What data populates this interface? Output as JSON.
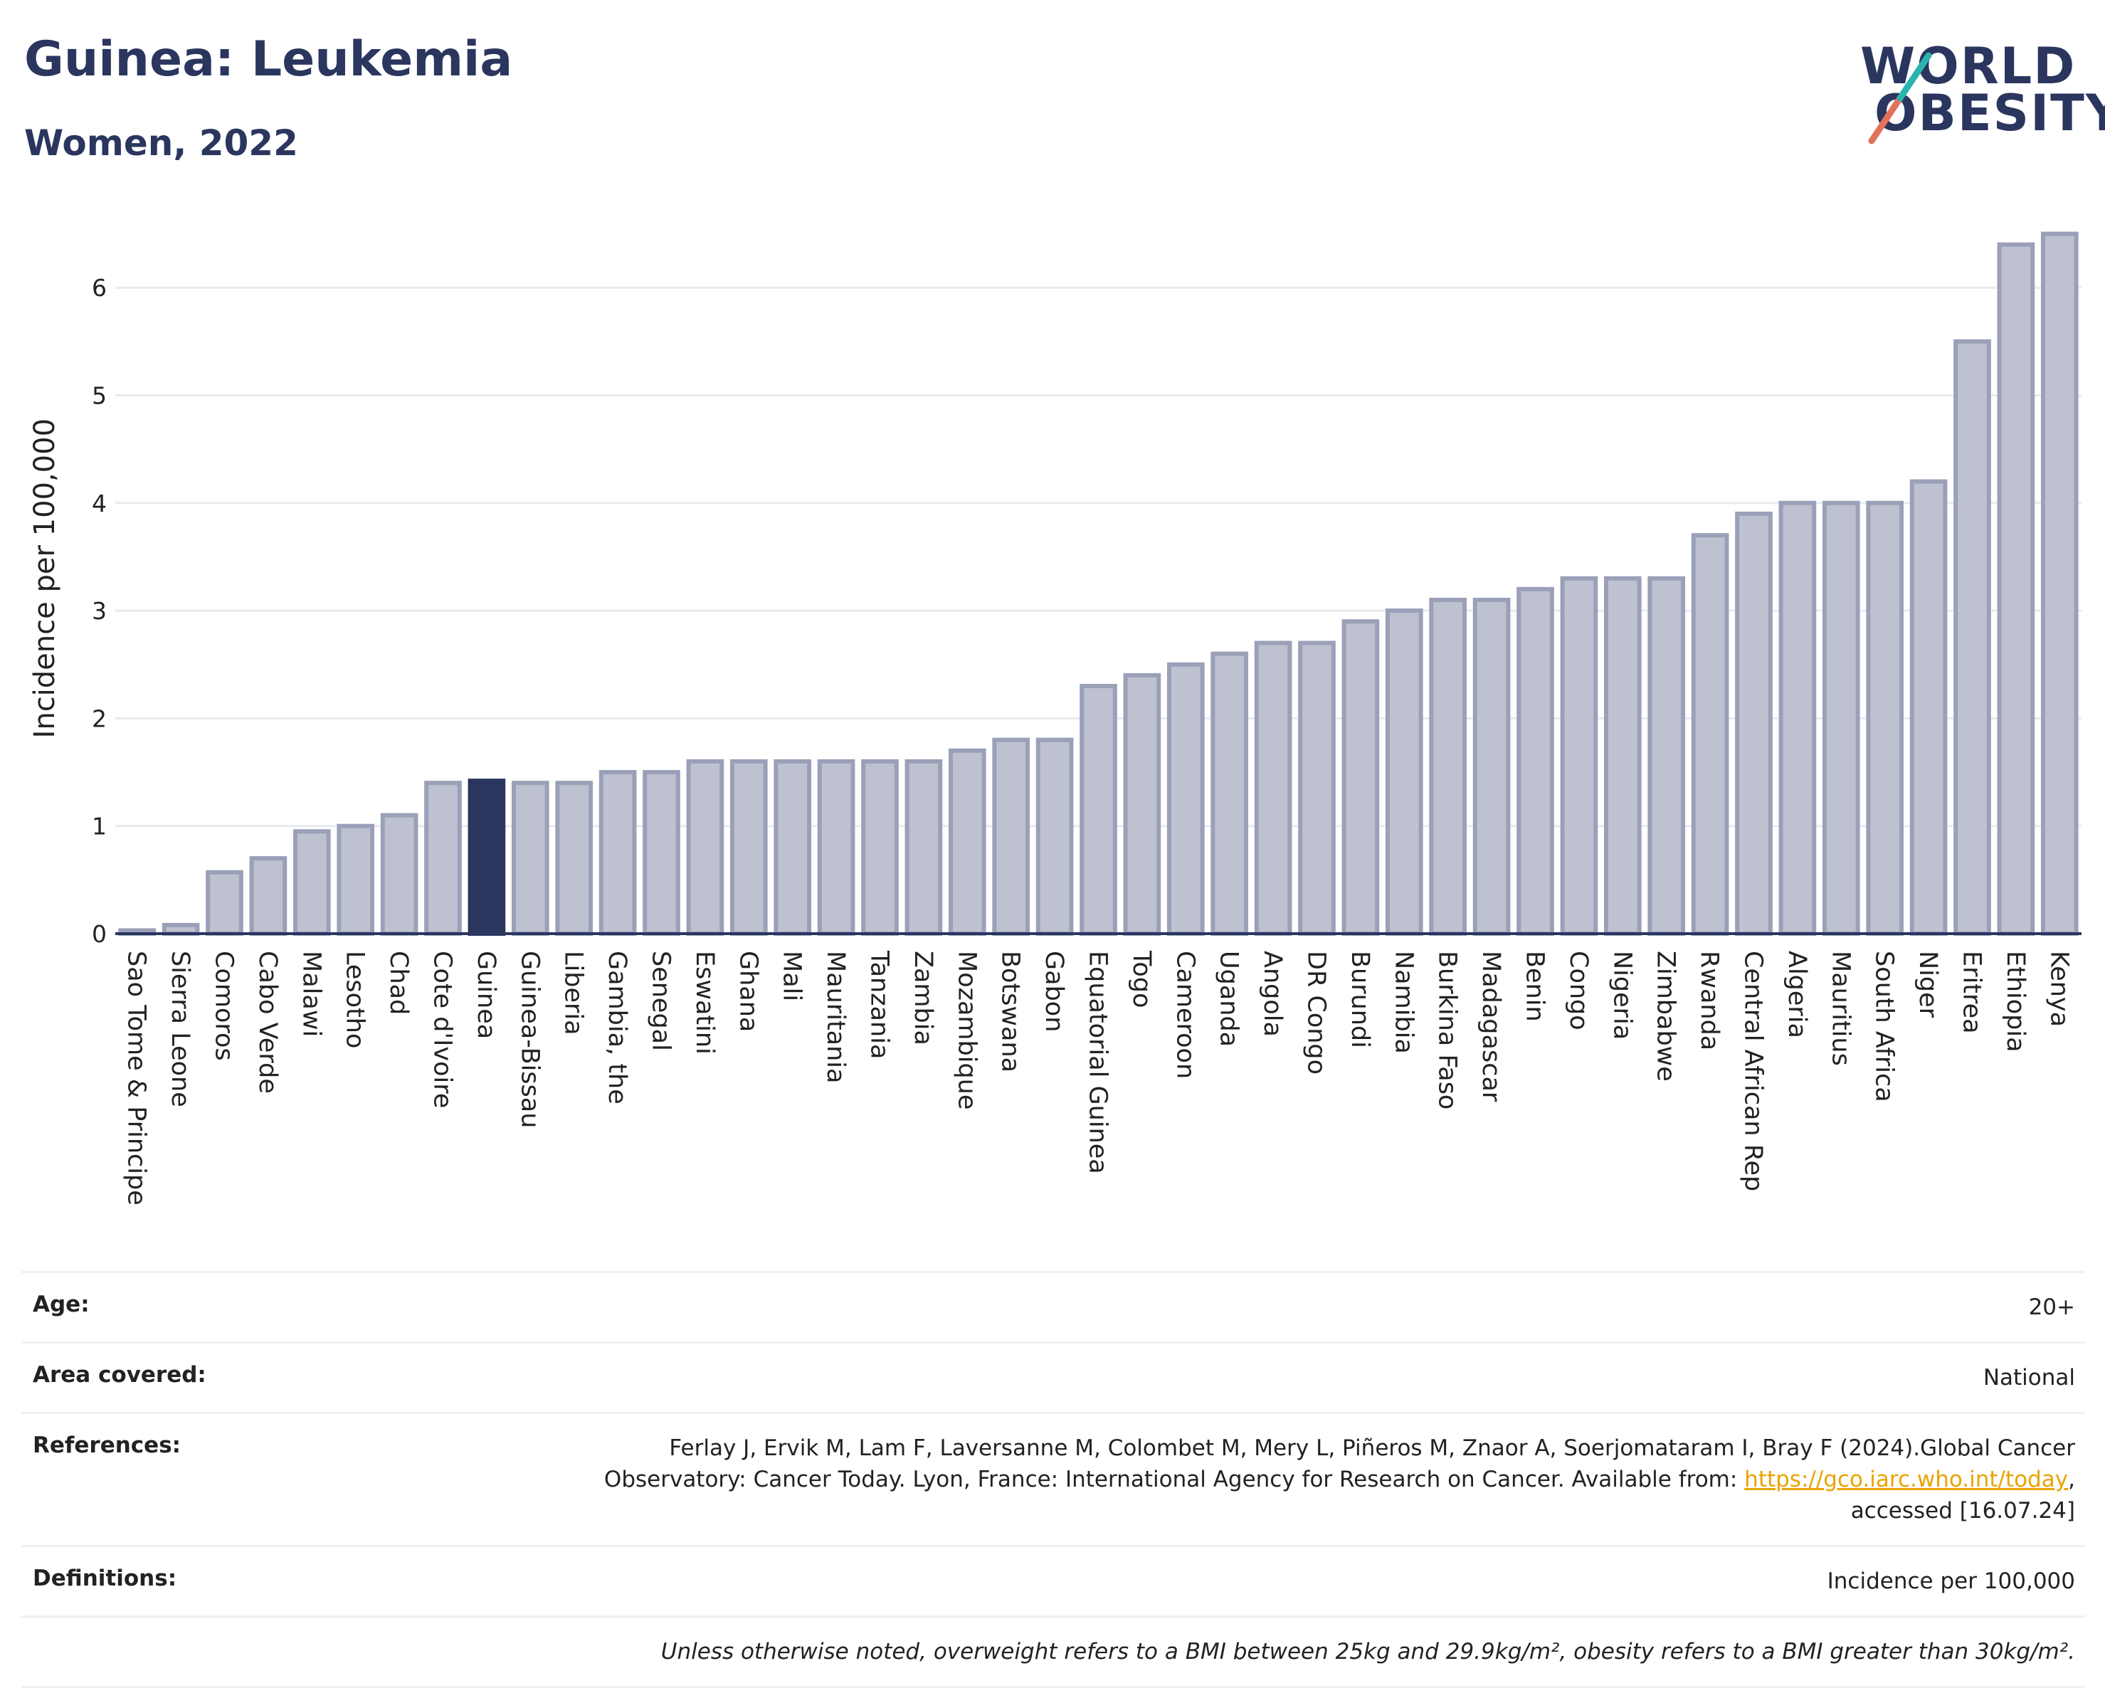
{
  "header": {
    "title": "Guinea: Leukemia",
    "subtitle": "Women, 2022"
  },
  "logo": {
    "line1": "WORLD",
    "line2": "OBESITY"
  },
  "colors": {
    "highlight": "#2b365f",
    "bar_fill": "#bdc1d0",
    "bar_stroke": "#9aa0b8",
    "grid": "#e8eaf0"
  },
  "chart_data": {
    "type": "bar",
    "ylabel": "Incidence per 100,000",
    "xlabel": "",
    "ylim": [
      0,
      6.6
    ],
    "yticks": [
      0,
      1,
      2,
      3,
      4,
      5,
      6
    ],
    "grid": true,
    "highlight": "Guinea",
    "categories": [
      "Sao Tome & Principe",
      "Sierra Leone",
      "Comoros",
      "Cabo Verde",
      "Malawi",
      "Lesotho",
      "Chad",
      "Cote d'Ivoire",
      "Guinea",
      "Guinea-Bissau",
      "Liberia",
      "Gambia, the",
      "Senegal",
      "Eswatini",
      "Ghana",
      "Mali",
      "Mauritania",
      "Tanzania",
      "Zambia",
      "Mozambique",
      "Botswana",
      "Gabon",
      "Equatorial Guinea",
      "Togo",
      "Cameroon",
      "Uganda",
      "Angola",
      "DR Congo",
      "Burundi",
      "Namibia",
      "Burkina Faso",
      "Madagascar",
      "Benin",
      "Congo",
      "Nigeria",
      "Zimbabwe",
      "Rwanda",
      "Central African Rep",
      "Algeria",
      "Mauritius",
      "South Africa",
      "Niger",
      "Eritrea",
      "Ethiopia",
      "Kenya"
    ],
    "values": [
      0.03,
      0.08,
      0.57,
      0.7,
      0.95,
      1.0,
      1.1,
      1.4,
      1.42,
      1.4,
      1.4,
      1.5,
      1.5,
      1.6,
      1.6,
      1.6,
      1.6,
      1.6,
      1.6,
      1.7,
      1.8,
      1.8,
      2.3,
      2.4,
      2.5,
      2.6,
      2.7,
      2.7,
      2.9,
      3.0,
      3.1,
      3.1,
      3.2,
      3.3,
      3.3,
      3.3,
      3.7,
      3.9,
      4.0,
      4.0,
      4.0,
      4.2,
      5.5,
      6.4,
      6.5
    ]
  },
  "info": {
    "age_label": "Age:",
    "age_value": "20+",
    "area_label": "Area covered:",
    "area_value": "National",
    "references_label": "References:",
    "references_line1": "Ferlay J, Ervik M, Lam F, Laversanne M, Colombet M, Mery L, Piñeros M, Znaor A, Soerjomataram I, Bray F (2024).Global Cancer",
    "references_line2_pre": "Observatory: Cancer Today. Lyon, France: International Agency for Research on Cancer. Available from: ",
    "references_link": "https://gco.iarc.who.int/today",
    "references_line2_post": ",",
    "references_line3": "accessed [16.07.24]",
    "definitions_label": "Definitions:",
    "definitions_value": "Incidence per 100,000",
    "note": "Unless otherwise noted, overweight refers to a BMI between 25kg and 29.9kg/m², obesity refers to a BMI greater than 30kg/m²."
  }
}
